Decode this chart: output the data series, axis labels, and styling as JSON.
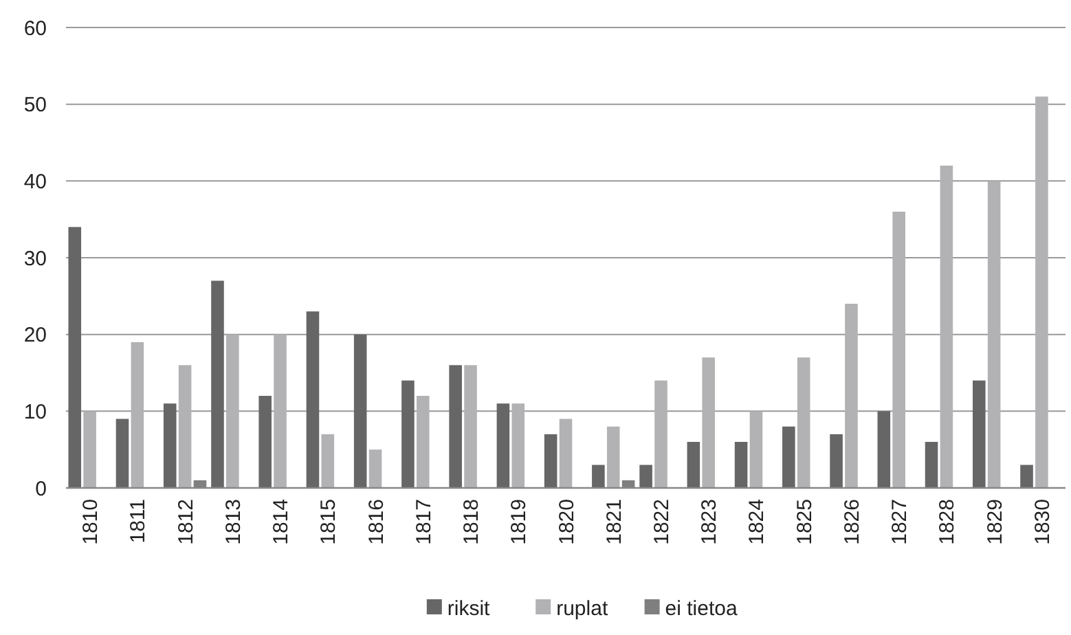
{
  "chart_data": {
    "type": "bar",
    "categories": [
      "1810",
      "1811",
      "1812",
      "1813",
      "1814",
      "1815",
      "1816",
      "1817",
      "1818",
      "1819",
      "1820",
      "1821",
      "1822",
      "1823",
      "1824",
      "1825",
      "1826",
      "1827",
      "1828",
      "1829",
      "1830"
    ],
    "series": [
      {
        "name": "riksit",
        "color": "#666666",
        "values": [
          34,
          9,
          11,
          27,
          12,
          23,
          20,
          14,
          16,
          11,
          7,
          3,
          3,
          6,
          6,
          8,
          7,
          10,
          6,
          14,
          3
        ]
      },
      {
        "name": "ruplat",
        "color": "#b2b2b4",
        "values": [
          10,
          19,
          16,
          20,
          20,
          7,
          5,
          12,
          16,
          11,
          9,
          8,
          14,
          17,
          10,
          17,
          24,
          36,
          42,
          40,
          51
        ]
      },
      {
        "name": "ei tietoa",
        "color": "#7f7f7f",
        "values": [
          0,
          0,
          1,
          0,
          0,
          0,
          0,
          0,
          0,
          0,
          0,
          1,
          0,
          0,
          0,
          0,
          0,
          0,
          0,
          0,
          0
        ]
      }
    ],
    "ylim": [
      0,
      60
    ],
    "yticks": [
      0,
      10,
      20,
      30,
      40,
      50,
      60
    ],
    "grid": "y",
    "legend": "bottom"
  }
}
